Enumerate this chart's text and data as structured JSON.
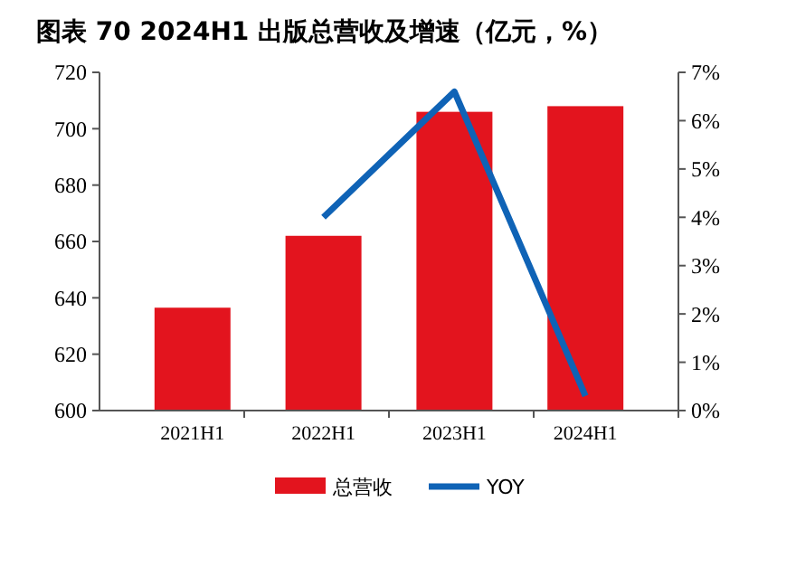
{
  "chart_data": {
    "type": "bar",
    "title": "图表 70 2024H1 出版总营收及增速（亿元，%）",
    "categories": [
      "2021H1",
      "2022H1",
      "2023H1",
      "2024H1"
    ],
    "series": [
      {
        "name": "总营收",
        "color": "#e3141e",
        "values": [
          636.5,
          662,
          706,
          708
        ]
      },
      {
        "name": "YOY",
        "type": "line",
        "axis": "y2",
        "color": "#0f63b6",
        "values": [
          null,
          4.0,
          6.6,
          0.3
        ]
      }
    ],
    "ylim": [
      600,
      720
    ],
    "yticks": [
      600,
      620,
      640,
      660,
      680,
      700,
      720
    ],
    "y2lim": [
      0,
      7
    ],
    "y2ticks": [
      {
        "value": 0,
        "label": "0%"
      },
      {
        "value": 1,
        "label": "1%"
      },
      {
        "value": 2,
        "label": "2%"
      },
      {
        "value": 3,
        "label": "3%"
      },
      {
        "value": 4,
        "label": "4%"
      },
      {
        "value": 5,
        "label": "5%"
      },
      {
        "value": 6,
        "label": "6%"
      },
      {
        "value": 7,
        "label": "7%"
      }
    ],
    "grid": false,
    "legend": "bottom",
    "marker": "none",
    "line_style": "solid"
  }
}
